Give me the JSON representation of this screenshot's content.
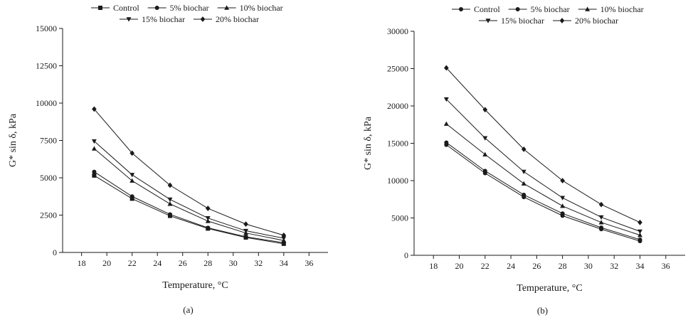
{
  "chart_data": [
    {
      "type": "line",
      "caption": "(a)",
      "xlabel": "Temperature, °C",
      "ylabel": "G* sin δ, kPa",
      "xlim": [
        16.5,
        37.5
      ],
      "ylim": [
        0,
        15000
      ],
      "xticks": [
        18,
        20,
        22,
        24,
        26,
        28,
        30,
        32,
        34,
        36
      ],
      "yticks": [
        0,
        2500,
        5000,
        7500,
        10000,
        12500,
        15000
      ],
      "grid": false,
      "legend_position": "top",
      "x": [
        19,
        22,
        25,
        28,
        31,
        34
      ],
      "series": [
        {
          "name": "Control",
          "marker": "square",
          "values": [
            5150,
            3600,
            2450,
            1600,
            1000,
            580
          ]
        },
        {
          "name": "5% biochar",
          "marker": "circle",
          "values": [
            5400,
            3750,
            2550,
            1650,
            1050,
            650
          ]
        },
        {
          "name": "10% biochar",
          "marker": "triangle-up",
          "values": [
            6950,
            4800,
            3250,
            2100,
            1300,
            800
          ]
        },
        {
          "name": "15% biochar",
          "marker": "triangle-down",
          "values": [
            7450,
            5200,
            3550,
            2300,
            1450,
            950
          ]
        },
        {
          "name": "20% biochar",
          "marker": "diamond",
          "values": [
            9600,
            6650,
            4500,
            2950,
            1900,
            1150
          ]
        }
      ]
    },
    {
      "type": "line",
      "caption": "(b)",
      "xlabel": "Temperature, °C",
      "ylabel": "G* sin δ, kPa",
      "xlim": [
        16.5,
        37.5
      ],
      "ylim": [
        0,
        30000
      ],
      "xticks": [
        18,
        20,
        22,
        24,
        26,
        28,
        30,
        32,
        34,
        36
      ],
      "yticks": [
        0,
        5000,
        10000,
        15000,
        20000,
        25000,
        30000
      ],
      "grid": false,
      "legend_position": "top",
      "x": [
        19,
        22,
        25,
        28,
        31,
        34
      ],
      "series": [
        {
          "name": "Control",
          "marker": "circle",
          "values": [
            14800,
            11000,
            7800,
            5300,
            3500,
            1900
          ]
        },
        {
          "name": "5% biochar",
          "marker": "circle",
          "values": [
            15100,
            11300,
            8100,
            5600,
            3700,
            2100
          ]
        },
        {
          "name": "10% biochar",
          "marker": "triangle-up",
          "values": [
            17600,
            13500,
            9600,
            6600,
            4400,
            2700
          ]
        },
        {
          "name": "15% biochar",
          "marker": "triangle-down",
          "values": [
            20900,
            15700,
            11200,
            7700,
            5100,
            3200
          ]
        },
        {
          "name": "20% biochar",
          "marker": "diamond",
          "values": [
            25100,
            19500,
            14200,
            10000,
            6800,
            4400
          ]
        }
      ]
    }
  ]
}
